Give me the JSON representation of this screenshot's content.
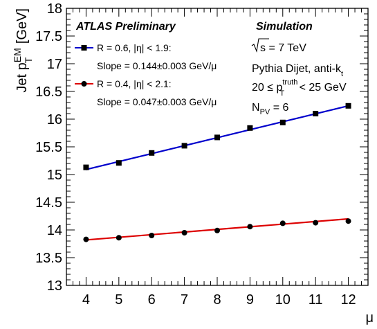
{
  "chart_data": {
    "type": "line",
    "xlabel": "μ",
    "ylabel_main": "Jet p",
    "ylabel_sup": "EM",
    "ylabel_sub": "T",
    "ylabel_unit": " [GeV]",
    "xlim": [
      3.4,
      12.6
    ],
    "ylim": [
      13,
      18
    ],
    "x_ticks": [
      4,
      5,
      6,
      7,
      8,
      9,
      10,
      11,
      12
    ],
    "y_ticks": [
      13,
      13.5,
      14,
      14.5,
      15,
      15.5,
      16,
      16.5,
      17,
      17.5,
      18
    ],
    "y_tick_labels": [
      "13",
      "13.5",
      "14",
      "14.5",
      "15",
      "15.5",
      "16",
      "16.5",
      "17",
      "17.5",
      "18"
    ],
    "x": [
      4,
      5,
      6,
      7,
      8,
      9,
      10,
      11,
      12
    ],
    "series": [
      {
        "legend_line1": "R = 0.6, |η| < 1.9:",
        "legend_line2": "Slope = 0.144±0.003 GeV/μ",
        "color": "#0000cc",
        "marker": "square",
        "values": [
          15.13,
          15.21,
          15.39,
          15.52,
          15.67,
          15.84,
          15.94,
          16.1,
          16.24
        ],
        "fit": [
          15.09,
          16.24
        ]
      },
      {
        "legend_line1": "R = 0.4, |η| < 2.1:",
        "legend_line2": "Slope = 0.047±0.003 GeV/μ",
        "color": "#dd0000",
        "marker": "circle",
        "values": [
          13.83,
          13.86,
          13.9,
          13.95,
          13.99,
          14.06,
          14.12,
          14.13,
          14.16
        ],
        "fit": [
          13.82,
          14.2
        ]
      }
    ],
    "annotations": {
      "atlas": "ATLAS Preliminary",
      "simulation": "Simulation",
      "energy": "s = 7 TeV",
      "generator_main": "Pythia Dijet, anti-k",
      "generator_sub": "t",
      "pt_bin_pre": "20 ≤ p",
      "pt_bin_sup": "truth",
      "pt_bin_sub": "T",
      "pt_bin_post": " < 25 GeV",
      "npv_main": "N",
      "npv_sub": "PV",
      "npv_post": " = 6"
    }
  }
}
